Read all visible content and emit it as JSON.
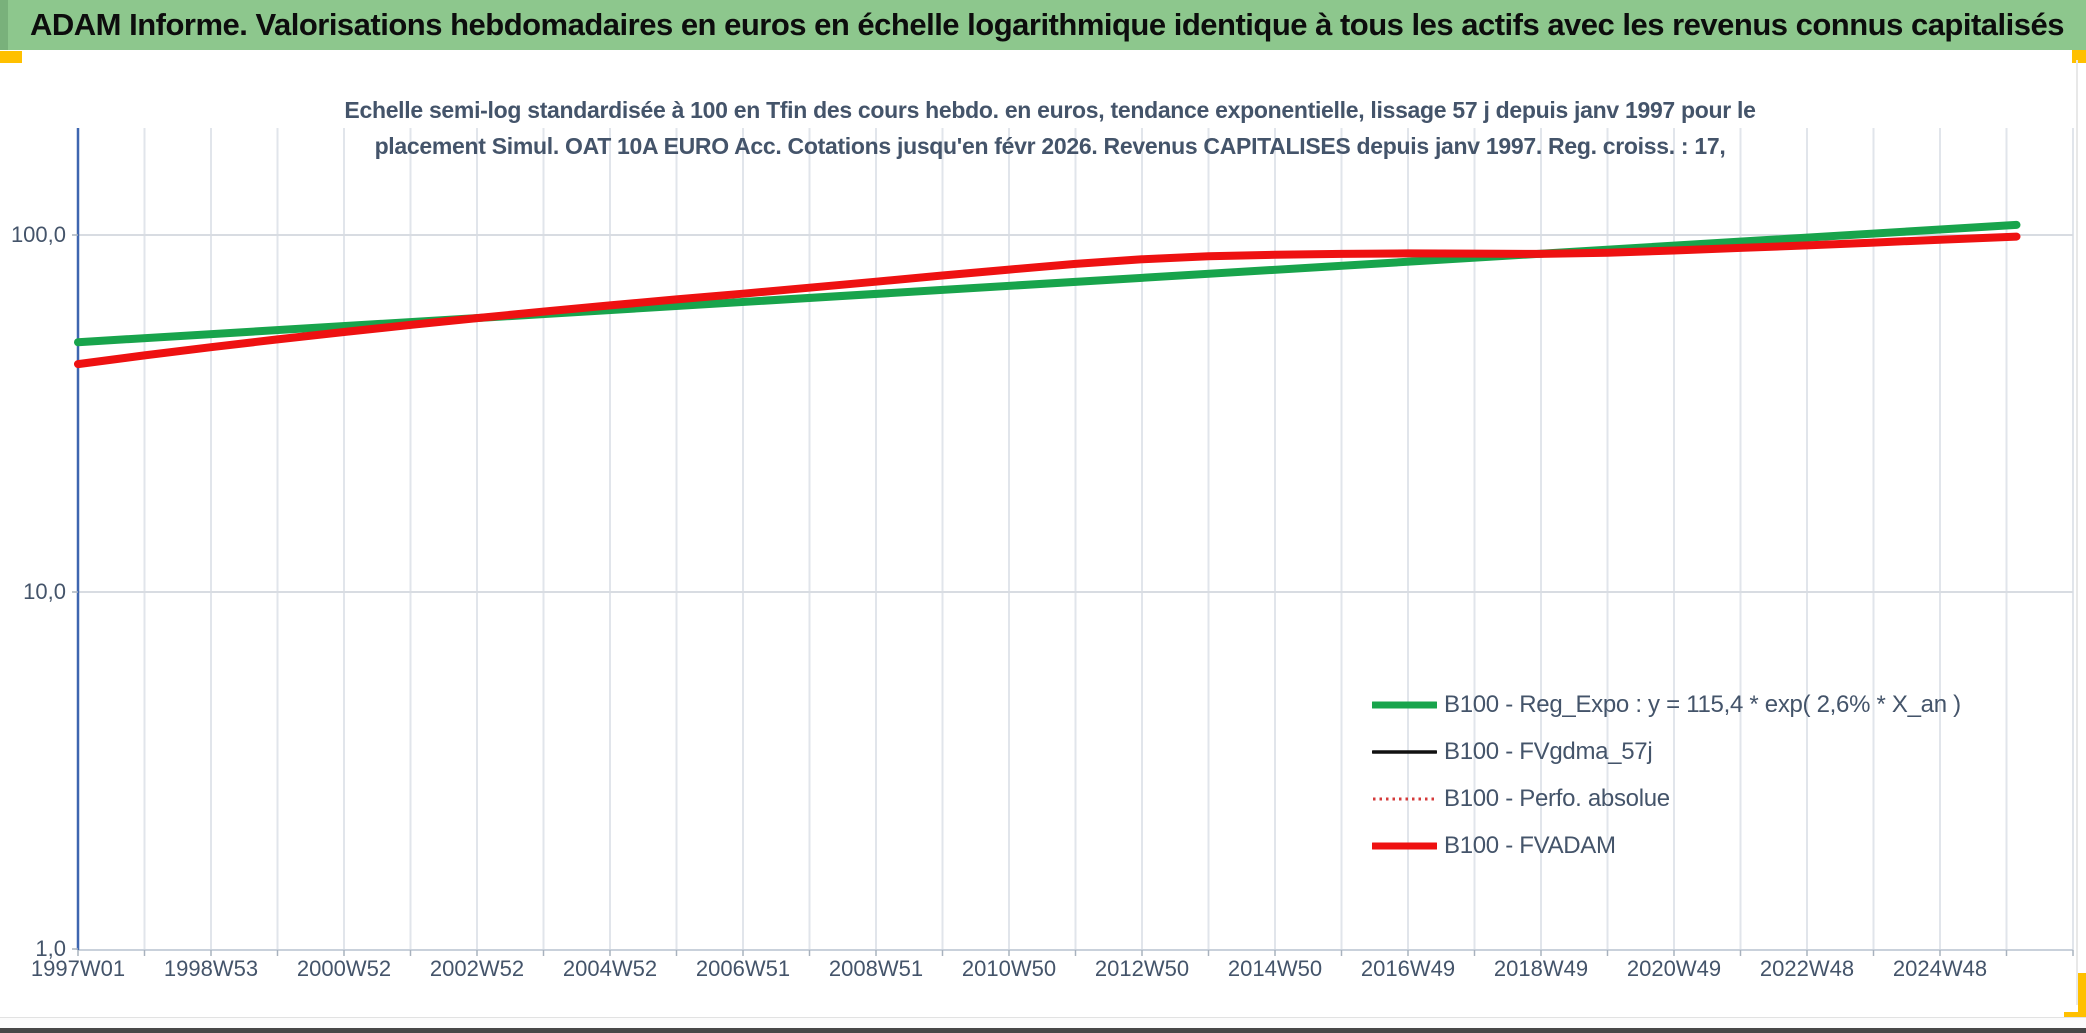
{
  "header": {
    "title": "ADAM Informe. Valorisations hebdomadaires en euros en échelle logarithmique identique à tous les actifs avec les revenus connus capitalisés"
  },
  "subtitle": {
    "line1": "Echelle semi-log standardisée à 100 en Tfin des cours hebdo. en euros, tendance exponentielle, lissage 57 j depuis janv 1997 pour le",
    "line2": "placement Simul. OAT 10A EURO Acc. Cotations jusqu'en févr 2026. Revenus CAPITALISES depuis janv 1997. Reg. croiss. : 17,"
  },
  "colors": {
    "header_band": "#8DC78D",
    "corner_marker": "#FFC000",
    "axis_text": "#44546A",
    "y_axis_line": "#3E66B0",
    "x_axis_line": "#C9D1DB",
    "gridline": "#E1E5EB",
    "decade_gridline": "#D8DCE2",
    "tick": "#A8B2BE",
    "green_series": "#18A44C",
    "red_series": "#EE1111",
    "black_series": "#111111",
    "dotted_series": "#D43A3A"
  },
  "chart_data": {
    "type": "line",
    "title": "Echelle semi-log standardisée à 100 en Tfin des cours hebdo. en euros, tendance exponentielle, lissage 57 j depuis janv 1997 pour le placement Simul. OAT 10A EURO Acc. Cotations jusqu'en févr 2026. Revenus CAPITALISES depuis janv 1997. Reg. croiss. : 17,",
    "x_axis": {
      "tick_labels": [
        "1997W01",
        "1998W53",
        "2000W52",
        "2002W52",
        "2004W52",
        "2006W51",
        "2008W51",
        "2010W50",
        "2012W50",
        "2014W50",
        "2016W49",
        "2018W49",
        "2020W49",
        "2022W48",
        "2024W48"
      ],
      "label_step_years": 2,
      "start_year": 1997.0,
      "end_year": 2026.15,
      "gridlines": "yearly"
    },
    "y_axis": {
      "scale": "log10",
      "tick_labels": [
        "100,0",
        "10,0",
        "1,0"
      ],
      "tick_values": [
        100,
        10,
        1
      ],
      "range": [
        1,
        200
      ]
    },
    "legend_position": "right-lower",
    "shared_points": {
      "FVADAM": [
        [
          1997.0,
          43.5
        ],
        [
          1998,
          46.0
        ],
        [
          1999,
          48.5
        ],
        [
          2000,
          51.0
        ],
        [
          2001,
          53.5
        ],
        [
          2002,
          56.0
        ],
        [
          2003,
          58.5
        ],
        [
          2004,
          61.0
        ],
        [
          2005,
          63.5
        ],
        [
          2006,
          66.0
        ],
        [
          2007,
          68.5
        ],
        [
          2008,
          71.2
        ],
        [
          2009,
          74.0
        ],
        [
          2010,
          77.0
        ],
        [
          2011,
          80.0
        ],
        [
          2012,
          83.0
        ],
        [
          2013,
          85.5
        ],
        [
          2014,
          87.2
        ],
        [
          2015,
          88.0
        ],
        [
          2016,
          88.5
        ],
        [
          2017,
          88.8
        ],
        [
          2018,
          88.7
        ],
        [
          2019,
          88.5
        ],
        [
          2020,
          89.2
        ],
        [
          2021,
          90.5
        ],
        [
          2022,
          92.0
        ],
        [
          2023,
          93.5
        ],
        [
          2024,
          95.2
        ],
        [
          2025,
          97.0
        ],
        [
          2026.15,
          99.0
        ]
      ]
    },
    "series": [
      {
        "name": "B100 - Reg_Expo : y = 115,4 * exp( 2,6% *  X_an )",
        "color": "#18A44C",
        "style": "solid",
        "width": 8,
        "points": [
          [
            1997.0,
            50.1
          ],
          [
            2026.15,
            106.7
          ]
        ]
      },
      {
        "name": "B100 - FVgdma_57j",
        "color": "#111111",
        "style": "solid",
        "width": 3,
        "coincident_with": "FVADAM",
        "points_key": "FVADAM"
      },
      {
        "name": "B100 - Perfo. absolue",
        "color": "#D43A3A",
        "style": "dotted",
        "width": 2.5,
        "coincident_with": "FVADAM",
        "points_key": "FVADAM"
      },
      {
        "name": "B100 - FVADAM",
        "color": "#EE1111",
        "style": "solid",
        "width": 8,
        "points_key": "FVADAM"
      }
    ]
  }
}
